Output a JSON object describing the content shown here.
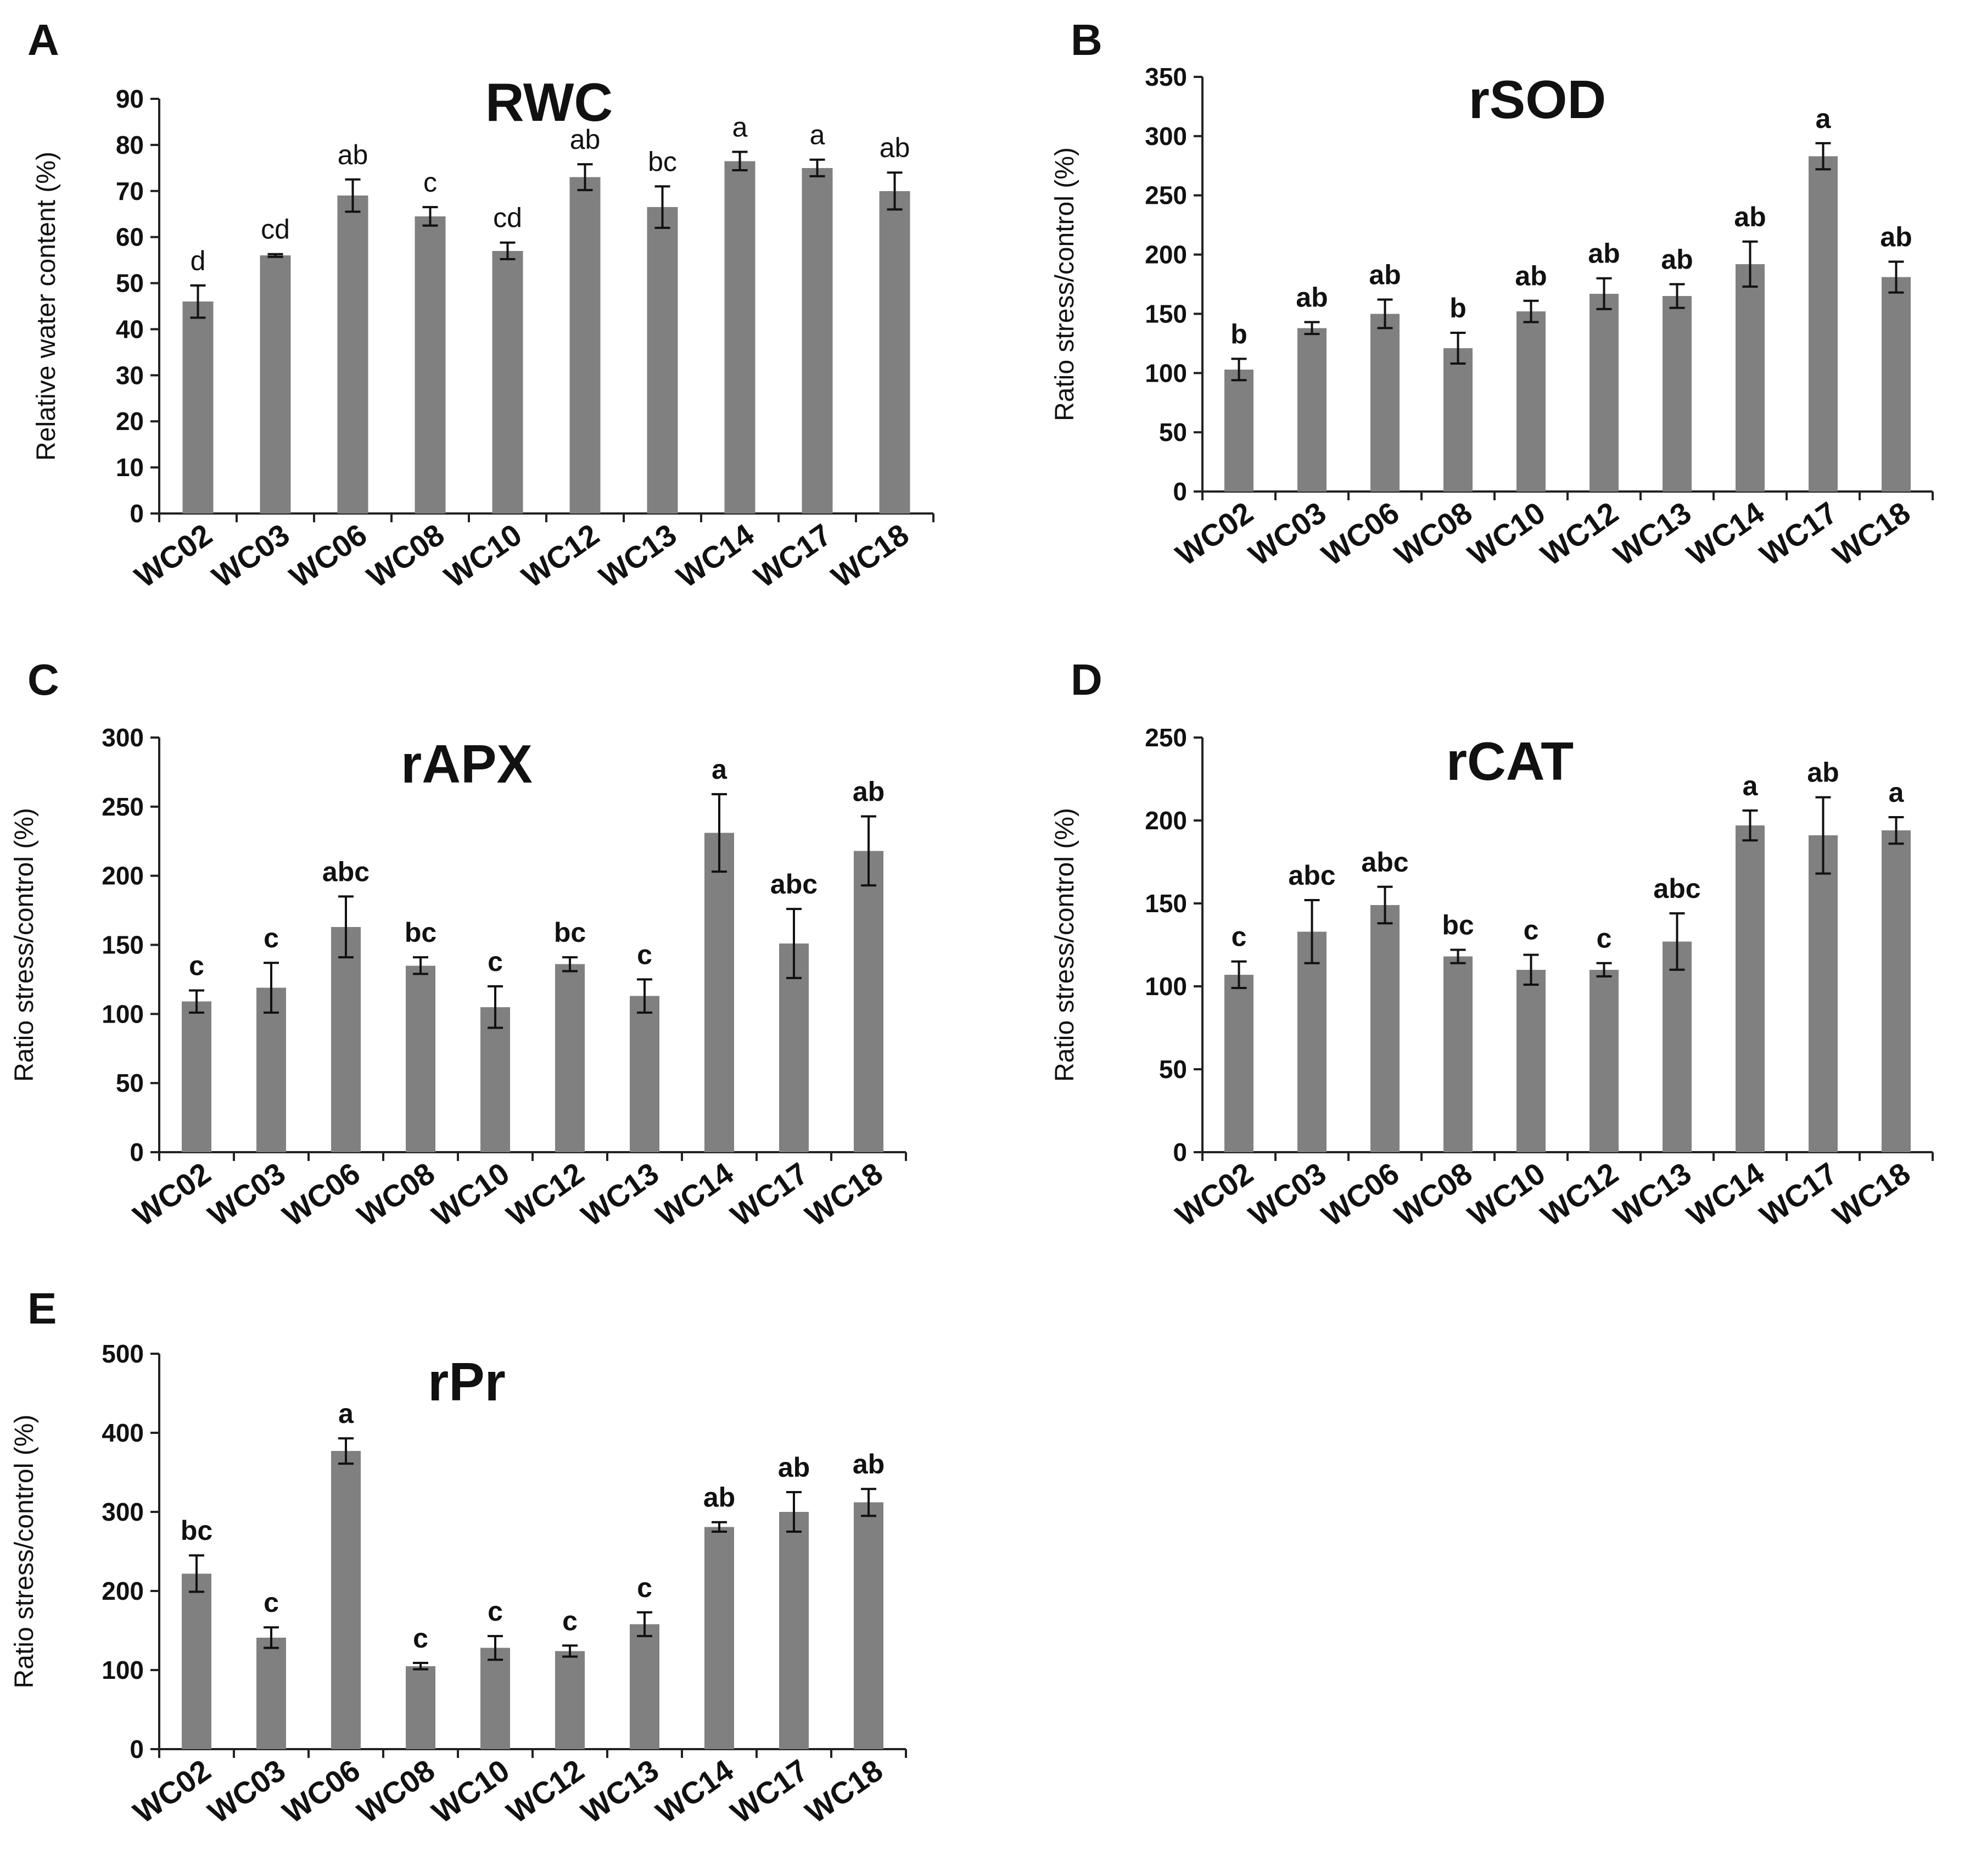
{
  "colors": {
    "bar": "#808080",
    "axis": "#222222",
    "text": "#111111",
    "background": "#ffffff"
  },
  "chart_data": [
    {
      "panel": "A",
      "type": "bar",
      "title": "RWC",
      "ylabel": "Relative water content (%)",
      "xlabel": "",
      "ylim": [
        0,
        90
      ],
      "yticks": [
        0,
        10,
        20,
        30,
        40,
        50,
        60,
        70,
        80,
        90
      ],
      "categories": [
        "WC02",
        "WC03",
        "WC06",
        "WC08",
        "WC10",
        "WC12",
        "WC13",
        "WC14",
        "WC17",
        "WC18"
      ],
      "values": [
        46,
        56,
        69,
        64.5,
        57,
        73,
        66.5,
        76.5,
        75,
        70
      ],
      "errors": [
        3.5,
        0.3,
        3.5,
        2,
        1.8,
        2.8,
        4.5,
        2,
        1.8,
        4
      ],
      "letters": [
        "d",
        "cd",
        "ab",
        "c",
        "cd",
        "ab",
        "bc",
        "a",
        "a",
        "ab"
      ],
      "letters_bold": false
    },
    {
      "panel": "B",
      "type": "bar",
      "title": "rSOD",
      "ylabel": "Ratio stress/control (%)",
      "xlabel": "",
      "ylim": [
        0,
        350
      ],
      "yticks": [
        0,
        50,
        100,
        150,
        200,
        250,
        300,
        350
      ],
      "categories": [
        "WC02",
        "WC03",
        "WC06",
        "WC08",
        "WC10",
        "WC12",
        "WC13",
        "WC14",
        "WC17",
        "WC18"
      ],
      "values": [
        103,
        138,
        150,
        121,
        152,
        167,
        165,
        192,
        283,
        181
      ],
      "errors": [
        9,
        5,
        12,
        13,
        9,
        13,
        10,
        19,
        11,
        13
      ],
      "letters": [
        "b",
        "ab",
        "ab",
        "b",
        "ab",
        "ab",
        "ab",
        "ab",
        "a",
        "ab"
      ],
      "letters_bold": true
    },
    {
      "panel": "C",
      "type": "bar",
      "title": "rAPX",
      "ylabel": "Ratio stress/control (%)",
      "xlabel": "",
      "ylim": [
        0,
        300
      ],
      "yticks": [
        0,
        50,
        100,
        150,
        200,
        250,
        300
      ],
      "categories": [
        "WC02",
        "WC03",
        "WC06",
        "WC08",
        "WC10",
        "WC12",
        "WC13",
        "WC14",
        "WC17",
        "WC18"
      ],
      "values": [
        109,
        119,
        163,
        135,
        105,
        136,
        113,
        231,
        151,
        218
      ],
      "errors": [
        8,
        18,
        22,
        6,
        15,
        5,
        12,
        28,
        25,
        25
      ],
      "letters": [
        "c",
        "c",
        "abc",
        "bc",
        "c",
        "bc",
        "c",
        "a",
        "abc",
        "ab"
      ],
      "letters_bold": true
    },
    {
      "panel": "D",
      "type": "bar",
      "title": "rCAT",
      "ylabel": "Ratio stress/control (%)",
      "xlabel": "",
      "ylim": [
        0,
        250
      ],
      "yticks": [
        0,
        50,
        100,
        150,
        200,
        250
      ],
      "categories": [
        "WC02",
        "WC03",
        "WC06",
        "WC08",
        "WC10",
        "WC12",
        "WC13",
        "WC14",
        "WC17",
        "WC18"
      ],
      "values": [
        107,
        133,
        149,
        118,
        110,
        110,
        127,
        197,
        191,
        194
      ],
      "errors": [
        8,
        19,
        11,
        4,
        9,
        4,
        17,
        9,
        23,
        8
      ],
      "letters": [
        "c",
        "abc",
        "abc",
        "bc",
        "c",
        "c",
        "abc",
        "a",
        "ab",
        "a"
      ],
      "letters_bold": true
    },
    {
      "panel": "E",
      "type": "bar",
      "title": "rPr",
      "ylabel": "Ratio stress/control (%)",
      "xlabel": "",
      "ylim": [
        0,
        500
      ],
      "yticks": [
        0,
        100,
        200,
        300,
        400,
        500
      ],
      "categories": [
        "WC02",
        "WC03",
        "WC06",
        "WC08",
        "WC10",
        "WC12",
        "WC13",
        "WC14",
        "WC17",
        "WC18"
      ],
      "values": [
        222,
        141,
        377,
        105,
        128,
        124,
        158,
        281,
        300,
        312
      ],
      "errors": [
        23,
        13,
        16,
        4,
        15,
        7,
        15,
        6,
        25,
        17
      ],
      "letters": [
        "bc",
        "c",
        "a",
        "c",
        "c",
        "c",
        "c",
        "ab",
        "ab",
        "ab"
      ],
      "letters_bold": true
    }
  ]
}
